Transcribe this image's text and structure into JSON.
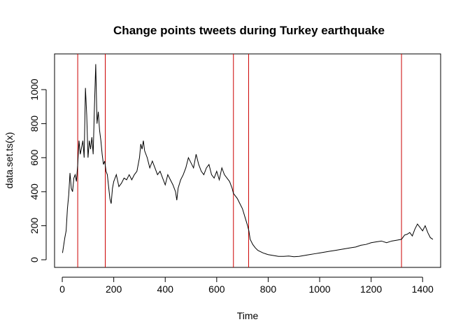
{
  "chart_data": {
    "type": "line",
    "title": "Change points tweets during Turkey earthquake",
    "xlabel": "Time",
    "ylabel": "data.set.ts(x)",
    "xlim": [
      -30,
      1470
    ],
    "ylim": [
      -45,
      1210
    ],
    "x_ticks": [
      0,
      200,
      400,
      600,
      800,
      1000,
      1200,
      1400
    ],
    "y_ticks": [
      0,
      200,
      400,
      600,
      800,
      1000
    ],
    "grid": false,
    "line_color": "#000000",
    "changepoint_color": "#cc0000",
    "changepoints": [
      60,
      167,
      665,
      724,
      1318
    ],
    "series": [
      {
        "x": [
          1,
          5,
          10,
          15,
          20,
          25,
          30,
          35,
          40,
          45,
          50,
          55,
          60,
          65,
          70,
          75,
          80,
          85,
          90,
          95,
          100,
          105,
          110,
          115,
          120,
          125,
          130,
          135,
          140,
          145,
          150,
          155,
          160,
          165,
          170,
          175,
          180,
          185,
          190,
          195,
          200,
          210,
          220,
          230,
          240,
          250,
          260,
          270,
          280,
          290,
          300,
          305,
          310,
          315,
          320,
          330,
          340,
          350,
          360,
          370,
          380,
          390,
          400,
          410,
          420,
          430,
          440,
          445,
          450,
          460,
          470,
          480,
          490,
          500,
          510,
          520,
          530,
          540,
          550,
          560,
          570,
          580,
          590,
          600,
          610,
          620,
          630,
          640,
          650,
          660,
          665,
          670,
          680,
          690,
          700,
          710,
          720,
          725,
          730,
          740,
          750,
          760,
          780,
          800,
          820,
          840,
          860,
          880,
          900,
          920,
          940,
          960,
          980,
          1000,
          1020,
          1040,
          1060,
          1080,
          1100,
          1120,
          1140,
          1160,
          1180,
          1200,
          1220,
          1240,
          1260,
          1280,
          1300,
          1318,
          1330,
          1340,
          1350,
          1360,
          1370,
          1380,
          1390,
          1400,
          1410,
          1420,
          1430,
          1440
        ],
        "y": [
          40,
          80,
          130,
          170,
          300,
          380,
          510,
          420,
          400,
          480,
          500,
          460,
          560,
          700,
          620,
          660,
          700,
          600,
          1010,
          850,
          600,
          700,
          650,
          720,
          620,
          900,
          1150,
          800,
          870,
          760,
          700,
          620,
          560,
          580,
          520,
          500,
          430,
          360,
          330,
          420,
          460,
          500,
          430,
          450,
          480,
          470,
          500,
          470,
          500,
          520,
          600,
          680,
          650,
          700,
          640,
          600,
          540,
          580,
          540,
          500,
          520,
          480,
          440,
          500,
          470,
          440,
          400,
          350,
          420,
          470,
          500,
          540,
          600,
          570,
          540,
          620,
          560,
          520,
          500,
          540,
          560,
          500,
          480,
          520,
          470,
          540,
          500,
          480,
          460,
          420,
          390,
          380,
          360,
          330,
          300,
          250,
          200,
          170,
          120,
          90,
          70,
          55,
          40,
          30,
          25,
          20,
          20,
          22,
          18,
          20,
          25,
          30,
          35,
          40,
          45,
          50,
          55,
          60,
          65,
          70,
          75,
          85,
          90,
          100,
          105,
          110,
          100,
          110,
          115,
          120,
          145,
          150,
          160,
          140,
          180,
          210,
          190,
          170,
          200,
          160,
          130,
          120
        ]
      }
    ]
  }
}
